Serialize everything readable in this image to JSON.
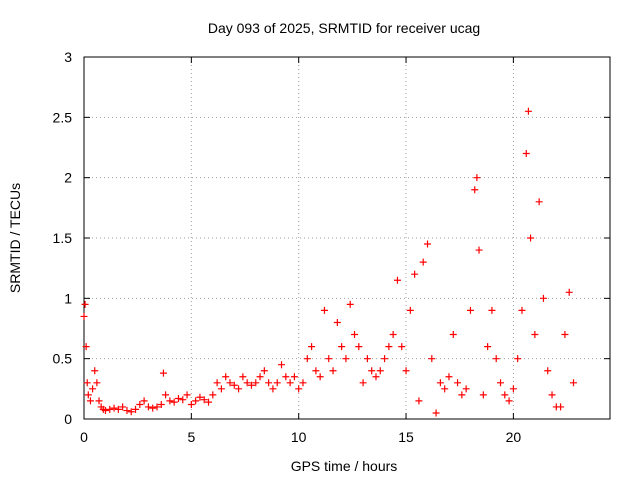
{
  "chart_data": {
    "type": "scatter",
    "title": "Day 093 of 2025, SRMTID for receiver ucag",
    "xlabel": "GPS time / hours",
    "ylabel": "SRMTID / TECUs",
    "xlim": [
      0,
      24.5
    ],
    "ylim": [
      0,
      3
    ],
    "x_ticks": [
      0,
      5,
      10,
      15,
      20
    ],
    "x_tick_labels": [
      "0",
      "5",
      "10",
      "15",
      "20"
    ],
    "y_ticks": [
      0,
      0.5,
      1,
      1.5,
      2,
      2.5,
      3
    ],
    "y_tick_labels": [
      "0",
      "0.5",
      "1",
      "1.5",
      "2",
      "2.5",
      "3"
    ],
    "grid": true,
    "marker": "+",
    "color": "#ff0000",
    "series": [
      {
        "name": "SRMTID",
        "x": [
          0.0,
          0.05,
          0.1,
          0.15,
          0.2,
          0.3,
          0.4,
          0.5,
          0.6,
          0.7,
          0.8,
          0.9,
          1.0,
          1.2,
          1.4,
          1.6,
          1.8,
          2.0,
          2.2,
          2.4,
          2.6,
          2.8,
          3.0,
          3.2,
          3.4,
          3.6,
          3.7,
          3.8,
          4.0,
          4.2,
          4.4,
          4.6,
          4.8,
          5.0,
          5.2,
          5.4,
          5.6,
          5.8,
          6.0,
          6.2,
          6.4,
          6.6,
          6.8,
          7.0,
          7.2,
          7.4,
          7.6,
          7.8,
          8.0,
          8.2,
          8.4,
          8.6,
          8.8,
          9.0,
          9.2,
          9.4,
          9.6,
          9.8,
          10.0,
          10.2,
          10.4,
          10.6,
          10.8,
          11.0,
          11.2,
          11.4,
          11.6,
          11.8,
          12.0,
          12.2,
          12.4,
          12.6,
          12.8,
          13.0,
          13.2,
          13.4,
          13.6,
          13.8,
          14.0,
          14.2,
          14.4,
          14.6,
          14.8,
          15.0,
          15.2,
          15.4,
          15.6,
          15.8,
          16.0,
          16.2,
          16.4,
          16.6,
          16.8,
          17.0,
          17.2,
          17.4,
          17.6,
          17.8,
          18.0,
          18.2,
          18.3,
          18.4,
          18.6,
          18.8,
          19.0,
          19.2,
          19.4,
          19.6,
          19.8,
          20.0,
          20.2,
          20.4,
          20.6,
          20.7,
          20.8,
          21.0,
          21.2,
          21.4,
          21.6,
          21.8,
          22.0,
          22.2,
          22.4,
          22.6,
          22.8
        ],
        "y": [
          0.85,
          0.95,
          0.6,
          0.3,
          0.2,
          0.15,
          0.25,
          0.4,
          0.3,
          0.15,
          0.1,
          0.08,
          0.07,
          0.08,
          0.09,
          0.08,
          0.1,
          0.07,
          0.06,
          0.08,
          0.12,
          0.15,
          0.1,
          0.09,
          0.1,
          0.12,
          0.38,
          0.2,
          0.15,
          0.14,
          0.17,
          0.16,
          0.2,
          0.12,
          0.15,
          0.18,
          0.16,
          0.14,
          0.2,
          0.3,
          0.25,
          0.35,
          0.3,
          0.28,
          0.25,
          0.35,
          0.3,
          0.28,
          0.3,
          0.35,
          0.4,
          0.3,
          0.25,
          0.3,
          0.45,
          0.35,
          0.3,
          0.35,
          0.25,
          0.3,
          0.5,
          0.6,
          0.4,
          0.35,
          0.9,
          0.5,
          0.4,
          0.8,
          0.6,
          0.5,
          0.95,
          0.7,
          0.6,
          0.3,
          0.5,
          0.4,
          0.35,
          0.4,
          0.5,
          0.6,
          0.7,
          1.15,
          0.6,
          0.4,
          0.9,
          1.2,
          0.15,
          1.3,
          1.45,
          0.5,
          0.05,
          0.3,
          0.25,
          0.35,
          0.7,
          0.3,
          0.2,
          0.25,
          0.9,
          1.9,
          2.0,
          1.4,
          0.2,
          0.6,
          0.9,
          0.5,
          0.3,
          0.2,
          0.15,
          0.25,
          0.5,
          0.9,
          2.2,
          2.55,
          1.5,
          0.7,
          1.8,
          1.0,
          0.4,
          0.2,
          0.1,
          0.1,
          0.7,
          1.05,
          0.3
        ],
        "series_color": "#ff0000"
      }
    ]
  }
}
